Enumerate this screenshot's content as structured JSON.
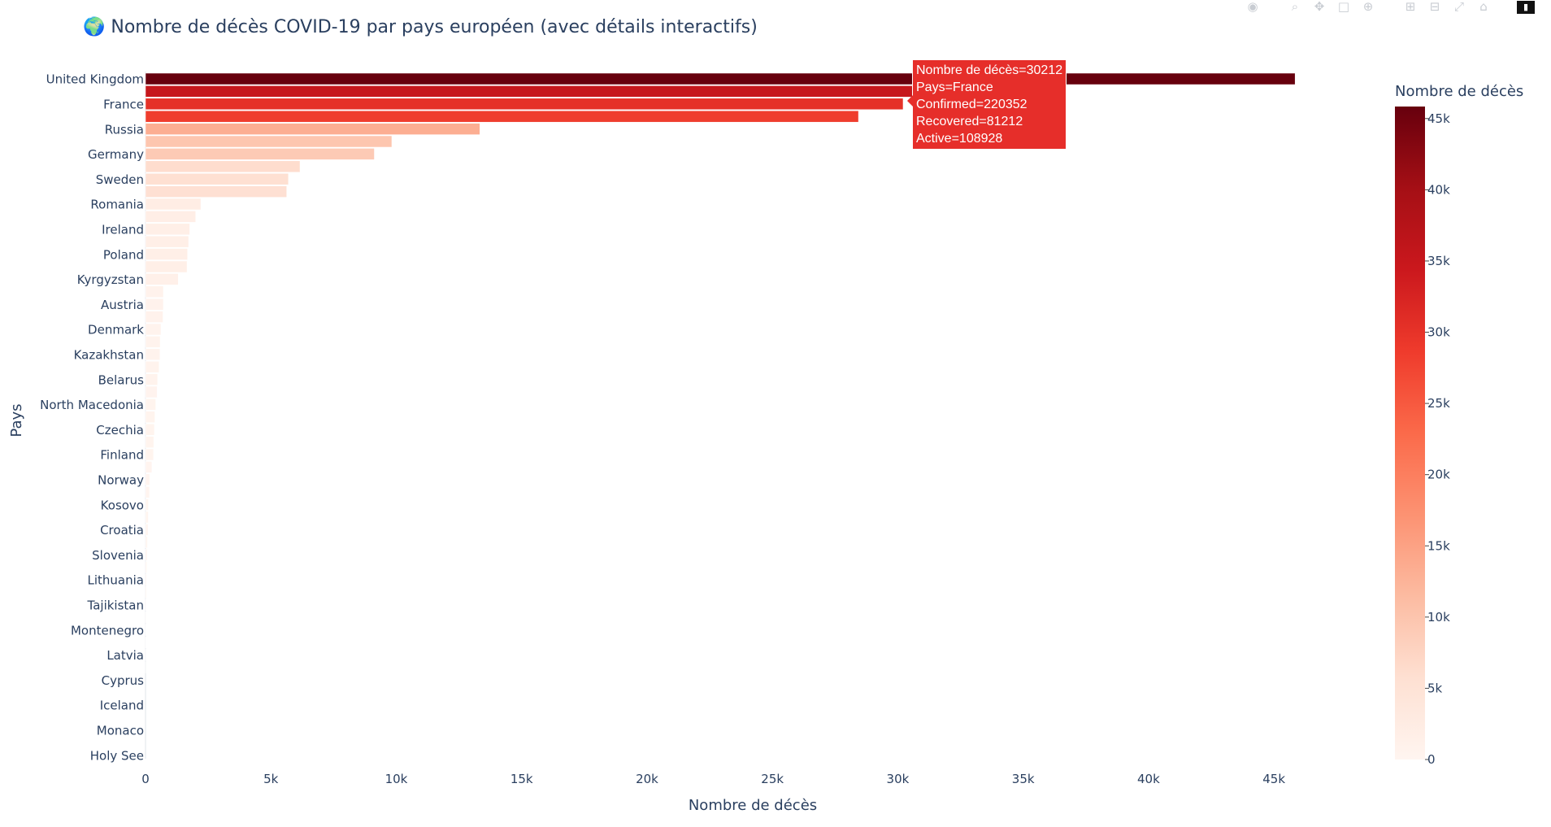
{
  "page_title": "🌍 Nombre de décès COVID-19 par pays européen (avec détails interactifs)",
  "modebar": {
    "icons": [
      "camera-icon",
      "zoom-icon",
      "pan-icon",
      "box-select-icon",
      "lasso-select-icon",
      "zoom-in-icon",
      "zoom-out-icon",
      "autoscale-icon",
      "reset-axes-icon",
      "plotly-logo-icon"
    ]
  },
  "tooltip": {
    "lines": [
      "Nombre de décès=30212",
      "Pays=France",
      "Confirmed=220352",
      "Recovered=81212",
      "Active=108928"
    ]
  },
  "chart_data": {
    "type": "bar",
    "orientation": "horizontal",
    "title": "🌍 Nombre de décès COVID-19 par pays européen (avec détails interactifs)",
    "xlabel": "Nombre de décès",
    "ylabel": "Pays",
    "xlim": [
      0,
      46000
    ],
    "x_ticks": [
      0,
      5000,
      10000,
      15000,
      20000,
      25000,
      30000,
      35000,
      40000,
      45000
    ],
    "x_tick_labels": [
      "0",
      "5k",
      "10k",
      "15k",
      "20k",
      "25k",
      "30k",
      "35k",
      "40k",
      "45k"
    ],
    "y_tick_labels": [
      "United Kingdom",
      "France",
      "Russia",
      "Germany",
      "Sweden",
      "Romania",
      "Ireland",
      "Poland",
      "Kyrgyzstan",
      "Austria",
      "Denmark",
      "Kazakhstan",
      "Belarus",
      "North Macedonia",
      "Czechia",
      "Finland",
      "Norway",
      "Kosovo",
      "Croatia",
      "Slovenia",
      "Lithuania",
      "Tajikistan",
      "Montenegro",
      "Latvia",
      "Cyprus",
      "Iceland",
      "Monaco",
      "Holy See"
    ],
    "values": [
      45844,
      35112,
      30212,
      28432,
      13334,
      9822,
      9125,
      6160,
      5700,
      5630,
      2206,
      2000,
      1764,
      1719,
      1676,
      1655,
      1303,
      713,
      712,
      698,
      615,
      585,
      575,
      541,
      483,
      466,
      407,
      373,
      353,
      328,
      319,
      255,
      166,
      160,
      116,
      112,
      100,
      78,
      67,
      52,
      45,
      35,
      27,
      19,
      16,
      10,
      4,
      1,
      0,
      0,
      0,
      0,
      0,
      0,
      0,
      0
    ],
    "colorbar": {
      "title": "Nombre de décès",
      "min": 0,
      "max": 45844,
      "ticks": [
        0,
        5000,
        10000,
        15000,
        20000,
        25000,
        30000,
        35000,
        40000,
        45000
      ],
      "tick_labels": [
        "0",
        "5k",
        "10k",
        "15k",
        "20k",
        "25k",
        "30k",
        "35k",
        "40k",
        "45k"
      ],
      "colorscale": [
        "#fff5f0",
        "#fee0d2",
        "#fcbba1",
        "#fc9272",
        "#fb6a4a",
        "#ef3b2c",
        "#cb181d",
        "#a50f15",
        "#67000d"
      ]
    },
    "grid": false,
    "legend": "none"
  }
}
